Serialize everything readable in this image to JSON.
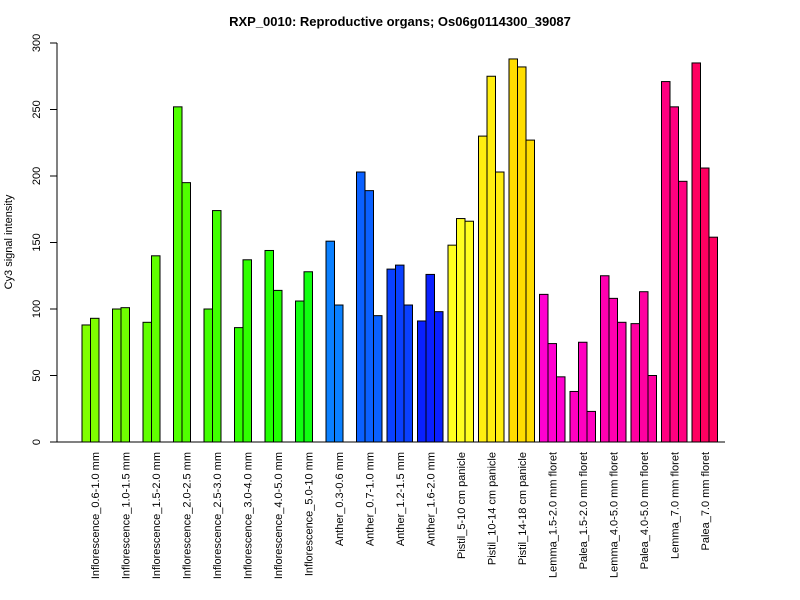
{
  "chart_data": {
    "type": "bar",
    "title": "RXP_0010: Reproductive organs; Os06g0114300_39087",
    "xlabel": "",
    "ylabel": "Cy3 signal intensity",
    "ylim": [
      0,
      300
    ],
    "yticks": [
      0,
      50,
      100,
      150,
      200,
      250,
      300
    ],
    "grid": false,
    "legend": "none",
    "categories": [
      {
        "label": "Inflorescence_0.6-1.0 mm",
        "color": "#80ff00",
        "values": [
          88,
          93
        ]
      },
      {
        "label": "Inflorescence_1.0-1.5 mm",
        "color": "#70ff00",
        "values": [
          100,
          101
        ]
      },
      {
        "label": "Inflorescence_1.5-2.0 mm",
        "color": "#60ff00",
        "values": [
          90,
          140
        ]
      },
      {
        "label": "Inflorescence_2.0-2.5 mm",
        "color": "#50ff00",
        "values": [
          252,
          195
        ]
      },
      {
        "label": "Inflorescence_2.5-3.0 mm",
        "color": "#40ff00",
        "values": [
          100,
          174
        ]
      },
      {
        "label": "Inflorescence_3.0-4.0 mm",
        "color": "#30ff00",
        "values": [
          86,
          137
        ]
      },
      {
        "label": "Inflorescence_4.0-5.0 mm",
        "color": "#20ff00",
        "values": [
          144,
          114
        ]
      },
      {
        "label": "Inflorescence_5.0-10 mm",
        "color": "#10ff10",
        "values": [
          106,
          128
        ]
      },
      {
        "label": "Anther_0.3-0.6 mm",
        "color": "#0a80ff",
        "values": [
          151,
          103
        ]
      },
      {
        "label": "Anther_0.7-1.0 mm",
        "color": "#0a60ff",
        "values": [
          203,
          189,
          95
        ]
      },
      {
        "label": "Anther_1.2-1.5 mm",
        "color": "#0a40ff",
        "values": [
          130,
          133,
          103
        ]
      },
      {
        "label": "Anther_1.6-2.0 mm",
        "color": "#0a20ff",
        "values": [
          91,
          126,
          98
        ]
      },
      {
        "label": "Pistil_5-10 cm panicle",
        "color": "#ffff20",
        "values": [
          148,
          168,
          166
        ]
      },
      {
        "label": "Pistil_10-14 cm panicle",
        "color": "#ffee10",
        "values": [
          230,
          275,
          203
        ]
      },
      {
        "label": "Pistil_14-18 cm panicle",
        "color": "#ffdd00",
        "values": [
          288,
          282,
          227
        ]
      },
      {
        "label": "Lemma_1.5-2.0 mm floret",
        "color": "#ff00d0",
        "values": [
          111,
          74,
          49
        ]
      },
      {
        "label": "Palea_1.5-2.0 mm floret",
        "color": "#ff00c0",
        "values": [
          38,
          75,
          23
        ]
      },
      {
        "label": "Lemma_4.0-5.0 mm floret",
        "color": "#ff00b0",
        "values": [
          125,
          108,
          90
        ]
      },
      {
        "label": "Palea_4.0-5.0 mm floret",
        "color": "#ff00a0",
        "values": [
          89,
          113,
          50
        ]
      },
      {
        "label": "Lemma_7.0 mm floret",
        "color": "#ff0080",
        "values": [
          271,
          252,
          196
        ]
      },
      {
        "label": "Palea_7.0 mm floret",
        "color": "#ff0060",
        "values": [
          285,
          206,
          154
        ]
      }
    ]
  }
}
